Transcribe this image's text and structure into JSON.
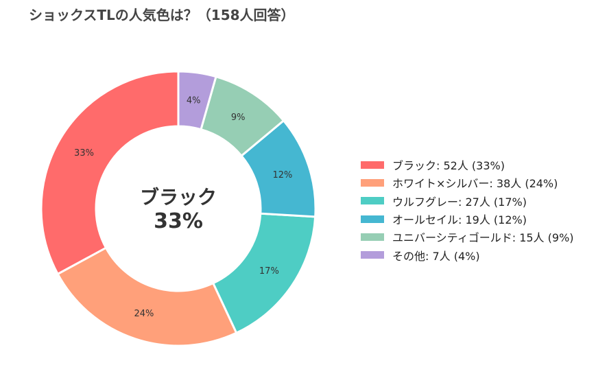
{
  "chart_data": {
    "type": "pie",
    "title": "ショックスTLの人気色は？（158人回答）",
    "center": {
      "line1": "ブラック",
      "line2": "33%"
    },
    "legend_position": "right",
    "slices": [
      {
        "label": "ブラック",
        "count": 52,
        "percent": 33,
        "percent_label": "33%",
        "legend_text": "ブラック:  52人 (33%)",
        "color": "#FF6B6B"
      },
      {
        "label": "ホワイト×シルバー",
        "count": 38,
        "percent": 24,
        "percent_label": "24%",
        "legend_text": "ホワイト×シルバー:  38人 (24%)",
        "color": "#FFA07A"
      },
      {
        "label": "ウルフグレー",
        "count": 27,
        "percent": 17,
        "percent_label": "17%",
        "legend_text": "ウルフグレー:  27人 (17%)",
        "color": "#4ECDC4"
      },
      {
        "label": "オールセイル",
        "count": 19,
        "percent": 12,
        "percent_label": "12%",
        "legend_text": "オールセイル:  19人 (12%)",
        "color": "#45B7D1"
      },
      {
        "label": "ユニバーシティゴールド",
        "count": 15,
        "percent": 9,
        "percent_label": "9%",
        "legend_text": "ユニバーシティゴールド:  15人 (9%)",
        "color": "#96CEB4"
      },
      {
        "label": "その他",
        "count": 7,
        "percent": 4,
        "percent_label": "4%",
        "legend_text": "その他:  7人 (4%)",
        "color": "#B39DDB"
      }
    ]
  }
}
